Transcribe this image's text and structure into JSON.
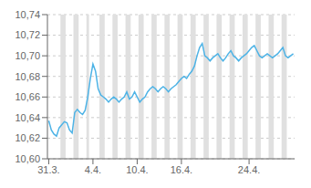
{
  "chart_data": {
    "type": "line",
    "categories": [
      "31.3.",
      null,
      null,
      null,
      null,
      null,
      null,
      null,
      null,
      null,
      null,
      null,
      null,
      null,
      null,
      null,
      null,
      "4.4.",
      null,
      null,
      null,
      null,
      null,
      null,
      null,
      null,
      null,
      null,
      null,
      null,
      null,
      null,
      null,
      null,
      "10.4.",
      null,
      null,
      null,
      null,
      null,
      null,
      null,
      null,
      null,
      null,
      null,
      null,
      null,
      null,
      null,
      null,
      "16.4.",
      null,
      null,
      null,
      null,
      null,
      null,
      null,
      null,
      null,
      null,
      null,
      null,
      null,
      null,
      null,
      null,
      null,
      null,
      null,
      null,
      null,
      null,
      null,
      null,
      null,
      "24.4.",
      null,
      null,
      null,
      null,
      null,
      null,
      null,
      null,
      null,
      null,
      null,
      null,
      null,
      null,
      null,
      null,
      null
    ],
    "values": [
      10.637,
      10.628,
      10.624,
      10.622,
      10.63,
      10.633,
      10.636,
      10.635,
      10.628,
      10.625,
      10.645,
      10.648,
      10.645,
      10.643,
      10.647,
      10.66,
      10.678,
      10.692,
      10.685,
      10.668,
      10.662,
      10.66,
      10.658,
      10.655,
      10.658,
      10.66,
      10.658,
      10.655,
      10.658,
      10.66,
      10.665,
      10.658,
      10.66,
      10.665,
      10.66,
      10.655,
      10.658,
      10.66,
      10.665,
      10.668,
      10.67,
      10.668,
      10.665,
      10.668,
      10.67,
      10.668,
      10.665,
      10.668,
      10.67,
      10.672,
      10.675,
      10.678,
      10.68,
      10.678,
      10.682,
      10.685,
      10.69,
      10.7,
      10.708,
      10.712,
      10.7,
      10.698,
      10.695,
      10.698,
      10.7,
      10.702,
      10.698,
      10.695,
      10.698,
      10.702,
      10.705,
      10.7,
      10.698,
      10.695,
      10.698,
      10.7,
      10.702,
      10.705,
      10.708,
      10.71,
      10.705,
      10.7,
      10.698,
      10.7,
      10.702,
      10.7,
      10.698,
      10.7,
      10.702,
      10.705,
      10.708,
      10.7,
      10.698,
      10.7,
      10.702
    ],
    "color": "#4db3e6",
    "ylim": [
      10.6,
      10.74
    ],
    "yticks": [
      {
        "value": 10.6,
        "label": "10,60"
      },
      {
        "value": 10.62,
        "label": "10,62"
      },
      {
        "value": 10.64,
        "label": "10,64"
      },
      {
        "value": 10.66,
        "label": "10,66"
      },
      {
        "value": 10.68,
        "label": "10,68"
      },
      {
        "value": 10.7,
        "label": "10,70"
      },
      {
        "value": 10.72,
        "label": "10,72"
      },
      {
        "value": 10.74,
        "label": "10,74"
      }
    ],
    "grid": true,
    "weekend_bands": [
      [
        4.5,
        6.5
      ],
      [
        9.5,
        11.5
      ],
      [
        14.5,
        15.5
      ],
      [
        19.5,
        21.5
      ],
      [
        24.5,
        26.5
      ],
      [
        29.5,
        31.5
      ],
      [
        34.5,
        36.5
      ],
      [
        39.5,
        41.5
      ],
      [
        44.5,
        46.5
      ],
      [
        49.5,
        51.5
      ],
      [
        54.5,
        56.5
      ],
      [
        59.5,
        61.5
      ],
      [
        64.5,
        66.5
      ],
      [
        69.5,
        71.5
      ],
      [
        74.5,
        76.5
      ],
      [
        79.5,
        81.5
      ],
      [
        84.5,
        86.5
      ],
      [
        89.5,
        91.5
      ]
    ]
  }
}
